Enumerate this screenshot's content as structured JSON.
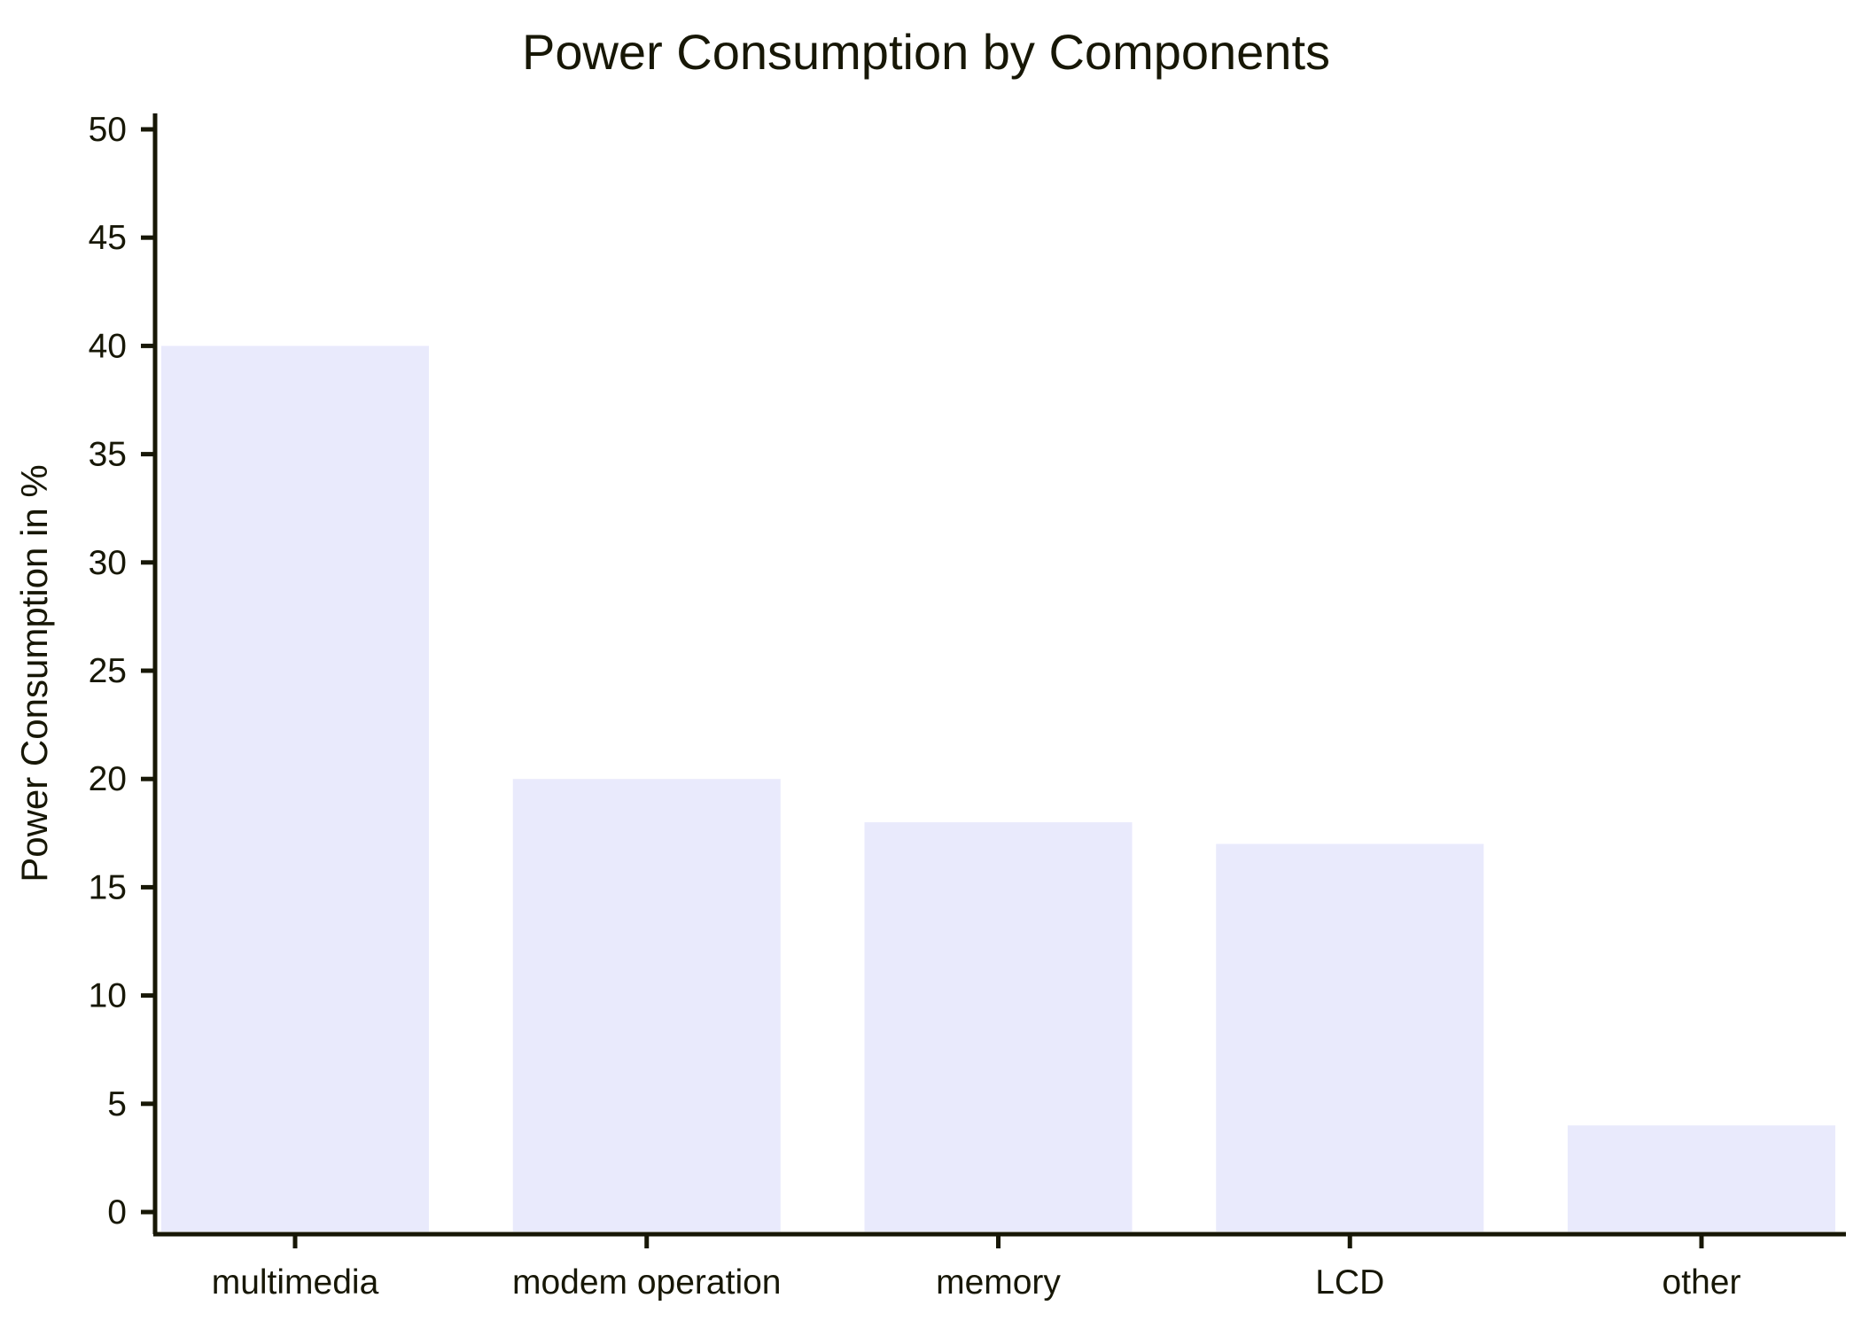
{
  "chart_data": {
    "type": "bar",
    "title": "Power Consumption by Components",
    "xlabel": "",
    "ylabel": "Power Consumption in %",
    "categories": [
      "multimedia",
      "modem operation",
      "memory",
      "LCD",
      "other"
    ],
    "values": [
      40,
      20,
      18,
      17,
      4
    ],
    "ylim": [
      0,
      50
    ],
    "yticks": [
      "0",
      "5",
      "10",
      "15",
      "20",
      "25",
      "30",
      "35",
      "40",
      "45",
      "50"
    ],
    "grid": false,
    "legend": "none",
    "colors": {
      "bar": "#e9eafc",
      "axis": "#171706",
      "text": "#171706",
      "background": "#ffffff"
    }
  }
}
